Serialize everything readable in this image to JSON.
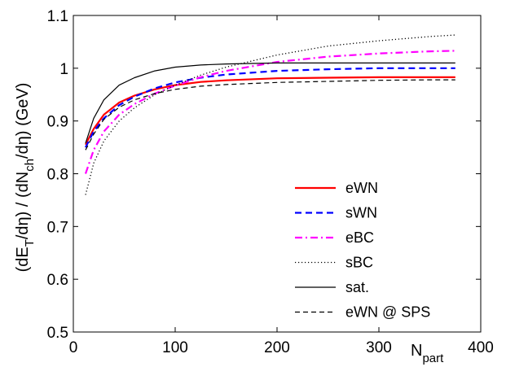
{
  "chart_data": {
    "type": "line",
    "title": "",
    "xlabel": "N",
    "xlabel_sub": "part",
    "ylabel_parts": [
      "(dE",
      "T",
      "/dη) / (dN",
      "ch",
      "/dη) (GeV)"
    ],
    "xlim": [
      0,
      400
    ],
    "ylim": [
      0.5,
      1.1
    ],
    "xticks": [
      0,
      100,
      200,
      300,
      400
    ],
    "yticks": [
      0.5,
      0.6,
      0.7,
      0.8,
      0.9,
      1,
      1.1
    ],
    "xtick_labels": [
      "0",
      "100",
      "200",
      "300",
      "400"
    ],
    "ytick_labels": [
      "0.5",
      "0.6",
      "0.7",
      "0.8",
      "0.9",
      "1",
      "1.1"
    ],
    "grid": false,
    "legend_position": "bottom-right",
    "series": [
      {
        "name": "eWN",
        "color": "#ff0000",
        "style": "solid",
        "x": [
          12,
          20,
          30,
          45,
          60,
          80,
          100,
          125,
          150,
          200,
          250,
          300,
          350,
          375
        ],
        "y": [
          0.855,
          0.885,
          0.912,
          0.935,
          0.948,
          0.96,
          0.968,
          0.974,
          0.977,
          0.981,
          0.982,
          0.983,
          0.983,
          0.983
        ]
      },
      {
        "name": "sWN",
        "color": "#0000ff",
        "style": "dashed",
        "x": [
          12,
          20,
          30,
          45,
          60,
          80,
          100,
          125,
          150,
          200,
          250,
          300,
          350,
          375
        ],
        "y": [
          0.85,
          0.88,
          0.905,
          0.93,
          0.946,
          0.962,
          0.973,
          0.982,
          0.988,
          0.995,
          0.998,
          1.0,
          1.0,
          1.0
        ]
      },
      {
        "name": "eBC",
        "color": "#ff00ff",
        "style": "dashdot",
        "x": [
          12,
          20,
          30,
          45,
          60,
          80,
          100,
          125,
          150,
          200,
          250,
          300,
          350,
          375
        ],
        "y": [
          0.8,
          0.845,
          0.88,
          0.912,
          0.932,
          0.952,
          0.967,
          0.983,
          0.995,
          1.012,
          1.022,
          1.028,
          1.032,
          1.033
        ]
      },
      {
        "name": "sBC",
        "color": "#000000",
        "style": "dotted",
        "x": [
          12,
          20,
          30,
          45,
          60,
          80,
          100,
          125,
          150,
          200,
          250,
          300,
          350,
          375
        ],
        "y": [
          0.76,
          0.82,
          0.862,
          0.9,
          0.925,
          0.95,
          0.968,
          0.987,
          1.002,
          1.025,
          1.042,
          1.052,
          1.06,
          1.063
        ]
      },
      {
        "name": "sat.",
        "color": "#000000",
        "style": "solid-thin",
        "x": [
          12,
          20,
          30,
          45,
          60,
          80,
          100,
          125,
          150,
          200,
          250,
          300,
          350,
          375
        ],
        "y": [
          0.858,
          0.905,
          0.94,
          0.968,
          0.982,
          0.995,
          1.002,
          1.006,
          1.008,
          1.01,
          1.01,
          1.01,
          1.01,
          1.01
        ]
      },
      {
        "name": "eWN @ SPS",
        "color": "#000000",
        "style": "dashed-thin",
        "x": [
          12,
          20,
          30,
          45,
          60,
          80,
          100,
          125,
          150,
          200,
          250,
          300,
          350,
          375
        ],
        "y": [
          0.845,
          0.875,
          0.903,
          0.926,
          0.94,
          0.952,
          0.96,
          0.966,
          0.969,
          0.973,
          0.975,
          0.977,
          0.978,
          0.978
        ]
      }
    ]
  }
}
